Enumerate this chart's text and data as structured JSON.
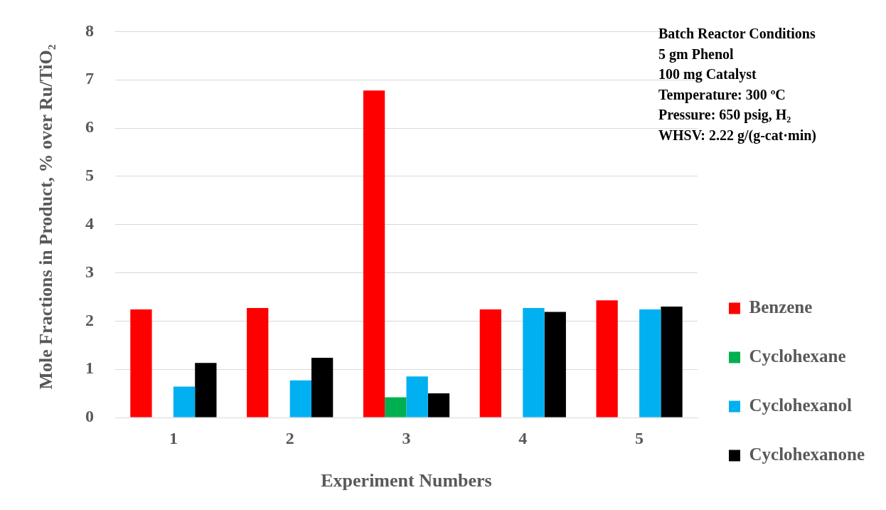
{
  "chart_data": {
    "type": "bar",
    "xlabel": "Experiment Numbers",
    "ylabel": "Mole Fractions in Product, % over Ru/TiO₂",
    "categories": [
      "1",
      "2",
      "3",
      "4",
      "5"
    ],
    "series": [
      {
        "name": "Benzene",
        "color": "#ff0000",
        "values": [
          2.24,
          2.27,
          6.78,
          2.24,
          2.43
        ]
      },
      {
        "name": "Cyclohexane",
        "color": "#00b050",
        "values": [
          0,
          0,
          0.42,
          0,
          0
        ]
      },
      {
        "name": "Cyclohexanol",
        "color": "#00b0f0",
        "values": [
          0.64,
          0.77,
          0.85,
          2.27,
          2.24
        ]
      },
      {
        "name": "Cyclohexanone",
        "color": "#000000",
        "values": [
          1.13,
          1.24,
          0.5,
          2.19,
          2.3
        ]
      }
    ],
    "ylim": [
      0,
      8
    ],
    "yticks": [
      0,
      1,
      2,
      3,
      4,
      5,
      6,
      7,
      8
    ],
    "grid": "y",
    "legend": "right",
    "annotations": [
      "Batch Reactor Conditions",
      "5 gm Phenol",
      "100 mg Catalyst",
      "Temperature: 300 ºC",
      "Pressure: 650 psig, H₂",
      "WHSV: 2.22 g/(g-cat·min)"
    ]
  }
}
